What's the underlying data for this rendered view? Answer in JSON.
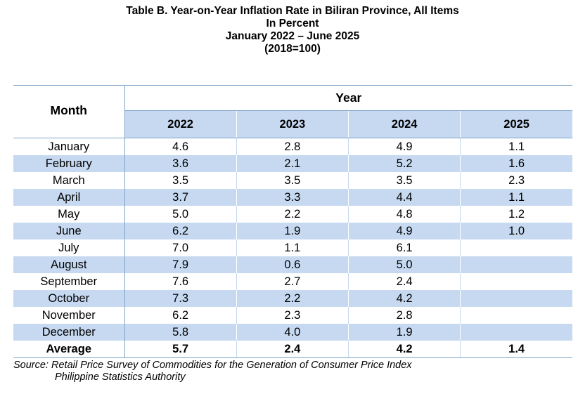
{
  "title": {
    "line1": "Table B. Year-on-Year Inflation Rate in Biliran Province, All Items",
    "line2": "In Percent",
    "line3": "January 2022 – June 2025",
    "line4": "(2018=100)"
  },
  "table": {
    "month_header": "Month",
    "year_header": "Year",
    "years": [
      "2022",
      "2023",
      "2024",
      "2025"
    ],
    "rows": [
      {
        "month": "January",
        "values": [
          "4.6",
          "2.8",
          "4.9",
          "1.1"
        ]
      },
      {
        "month": "February",
        "values": [
          "3.6",
          "2.1",
          "5.2",
          "1.6"
        ]
      },
      {
        "month": "March",
        "values": [
          "3.5",
          "3.5",
          "3.5",
          "2.3"
        ]
      },
      {
        "month": "April",
        "values": [
          "3.7",
          "3.3",
          "4.4",
          "1.1"
        ]
      },
      {
        "month": "May",
        "values": [
          "5.0",
          "2.2",
          "4.8",
          "1.2"
        ]
      },
      {
        "month": "June",
        "values": [
          "6.2",
          "1.9",
          "4.9",
          "1.0"
        ]
      },
      {
        "month": "July",
        "values": [
          "7.0",
          "1.1",
          "6.1",
          ""
        ]
      },
      {
        "month": "August",
        "values": [
          "7.9",
          "0.6",
          "5.0",
          ""
        ]
      },
      {
        "month": "September",
        "values": [
          "7.6",
          "2.7",
          "2.4",
          ""
        ]
      },
      {
        "month": "October",
        "values": [
          "7.3",
          "2.2",
          "4.2",
          ""
        ]
      },
      {
        "month": "November",
        "values": [
          "6.2",
          "2.3",
          "2.8",
          ""
        ]
      },
      {
        "month": "December",
        "values": [
          "5.8",
          "4.0",
          "1.9",
          ""
        ]
      }
    ],
    "average": {
      "label": "Average",
      "values": [
        "5.7",
        "2.4",
        "4.2",
        "1.4"
      ]
    }
  },
  "source": {
    "line1": "Source: Retail Price Survey of Commodities for the Generation of Consumer Price Index",
    "line2": "Philippine Statistics Authority"
  },
  "colors": {
    "header_fill": "#c6d9f1",
    "rule": "#7fa3c7"
  }
}
